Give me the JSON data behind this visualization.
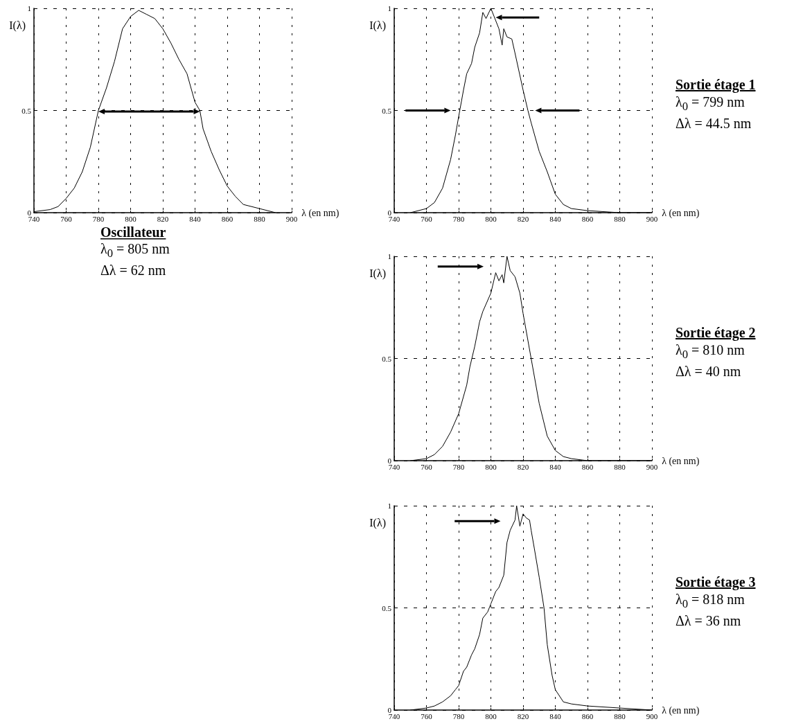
{
  "chart_data": [
    {
      "type": "line",
      "title": "Oscillateur",
      "annotations": [
        "λ$_{0}$ = 805 nm",
        "Δλ = 62 nm"
      ],
      "xlabel": "λ (en nm)",
      "ylabel": "I(λ)",
      "color": "#000000",
      "marker": "none",
      "grid": true,
      "xlim": [
        740,
        900
      ],
      "ylim": [
        0,
        1
      ],
      "xticks": [
        740,
        760,
        780,
        800,
        820,
        840,
        860,
        880,
        900
      ],
      "yticks": [
        0,
        0.5,
        1
      ],
      "x": [
        740,
        750,
        755,
        760,
        765,
        770,
        775,
        780,
        785,
        790,
        795,
        800,
        805,
        810,
        815,
        820,
        825,
        830,
        835,
        840,
        843,
        845,
        850,
        855,
        860,
        865,
        870,
        880,
        890
      ],
      "values": [
        0.005,
        0.015,
        0.03,
        0.07,
        0.12,
        0.2,
        0.32,
        0.5,
        0.61,
        0.74,
        0.9,
        0.96,
        0.99,
        0.97,
        0.95,
        0.9,
        0.83,
        0.75,
        0.68,
        0.54,
        0.5,
        0.41,
        0.3,
        0.21,
        0.13,
        0.08,
        0.04,
        0.02,
        0
      ]
    },
    {
      "type": "line",
      "annotations": [
        "Sortie étage 1",
        "λ$_{0}$ = 799 nm",
        "Δλ = 44.5 nm"
      ],
      "xlabel": "λ (en nm)",
      "ylabel": "I(λ)",
      "color": "#000000",
      "marker": "none",
      "grid": true,
      "xlim": [
        740,
        900
      ],
      "ylim": [
        0,
        1
      ],
      "xticks": [
        740,
        760,
        780,
        800,
        820,
        840,
        860,
        880,
        900
      ],
      "yticks": [
        0,
        0.5,
        1
      ],
      "x": [
        750,
        760,
        765,
        770,
        775,
        778,
        780,
        783,
        785,
        788,
        790,
        793,
        795,
        797,
        800,
        802,
        805,
        807,
        808,
        810,
        813,
        815,
        820,
        823,
        825,
        830,
        835,
        840,
        845,
        850,
        860,
        880,
        900
      ],
      "values": [
        0,
        0.02,
        0.05,
        0.12,
        0.26,
        0.38,
        0.47,
        0.6,
        0.68,
        0.73,
        0.81,
        0.88,
        0.98,
        0.95,
        1,
        0.96,
        0.9,
        0.82,
        0.9,
        0.86,
        0.85,
        0.78,
        0.6,
        0.5,
        0.44,
        0.3,
        0.2,
        0.09,
        0.04,
        0.02,
        0.01,
        0,
        0
      ]
    },
    {
      "type": "line",
      "annotations": [
        "Sortie étage 2",
        "λ$_{0}$ = 810 nm",
        "Δλ = 40 nm"
      ],
      "xlabel": "λ (en nm)",
      "ylabel": "I(λ)",
      "color": "#000000",
      "marker": "none",
      "grid": true,
      "xlim": [
        740,
        900
      ],
      "ylim": [
        0,
        1
      ],
      "xticks": [
        740,
        760,
        780,
        800,
        820,
        840,
        860,
        880,
        900
      ],
      "yticks": [
        0,
        0.5,
        1
      ],
      "x": [
        750,
        760,
        765,
        770,
        775,
        780,
        785,
        787,
        790,
        793,
        795,
        800,
        803,
        805,
        807,
        808,
        810,
        812,
        815,
        818,
        820,
        825,
        830,
        835,
        840,
        845,
        850,
        860,
        900
      ],
      "values": [
        0,
        0.01,
        0.03,
        0.07,
        0.14,
        0.23,
        0.37,
        0.46,
        0.56,
        0.68,
        0.73,
        0.82,
        0.92,
        0.88,
        0.91,
        0.87,
        1,
        0.93,
        0.9,
        0.82,
        0.72,
        0.5,
        0.28,
        0.12,
        0.05,
        0.02,
        0.01,
        0,
        0
      ]
    },
    {
      "type": "line",
      "annotations": [
        "Sortie étage 3",
        "λ$_{0}$ = 818 nm",
        "Δλ = 36 nm"
      ],
      "xlabel": "λ (en nm)",
      "ylabel": "I(λ)",
      "color": "#000000",
      "marker": "none",
      "grid": true,
      "xlim": [
        740,
        900
      ],
      "ylim": [
        0,
        1
      ],
      "xticks": [
        740,
        760,
        780,
        800,
        820,
        840,
        860,
        880,
        900
      ],
      "yticks": [
        0,
        0.5,
        1
      ],
      "x": [
        750,
        760,
        765,
        770,
        775,
        778,
        780,
        783,
        785,
        788,
        790,
        793,
        795,
        798,
        800,
        803,
        805,
        808,
        810,
        812,
        815,
        816,
        818,
        820,
        822,
        824,
        825,
        827,
        830,
        833,
        835,
        838,
        840,
        845,
        850,
        860,
        880,
        900
      ],
      "values": [
        0,
        0.01,
        0.02,
        0.04,
        0.07,
        0.1,
        0.12,
        0.19,
        0.21,
        0.27,
        0.3,
        0.37,
        0.45,
        0.48,
        0.52,
        0.58,
        0.6,
        0.66,
        0.82,
        0.88,
        0.93,
        1,
        0.9,
        0.96,
        0.94,
        0.93,
        0.88,
        0.79,
        0.65,
        0.5,
        0.32,
        0.17,
        0.1,
        0.04,
        0.03,
        0.02,
        0.01,
        0
      ]
    }
  ]
}
